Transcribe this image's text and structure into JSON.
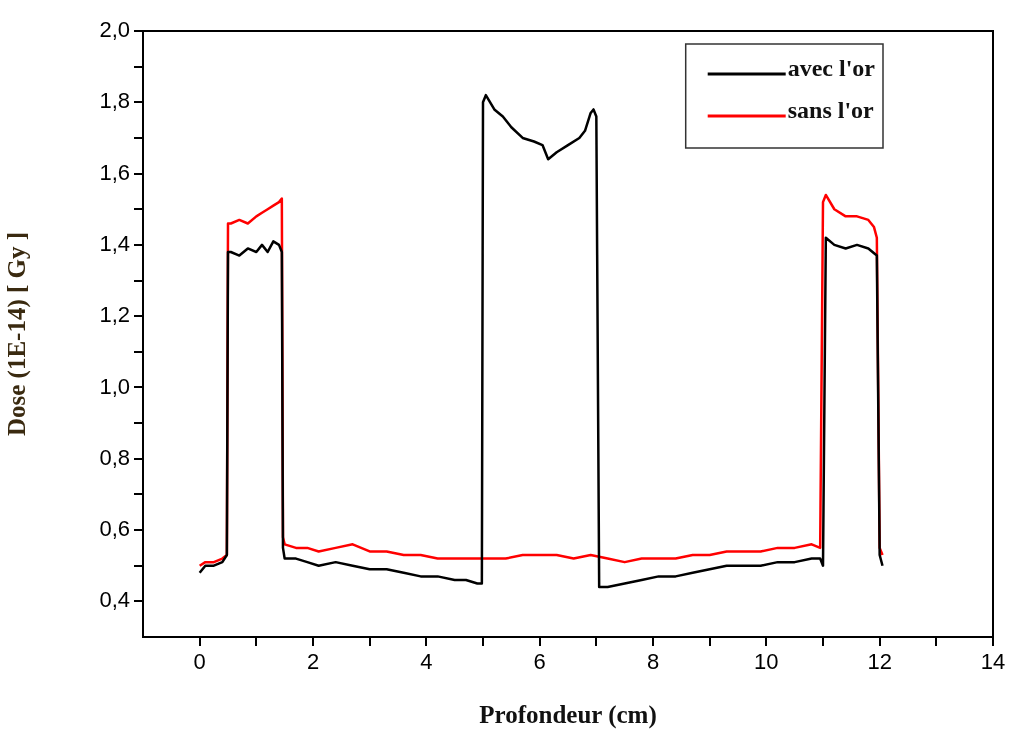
{
  "chart_data": {
    "type": "line",
    "xlabel": "Profondeur (cm)",
    "ylabel": "Dose (1E-14) [ Gy ]",
    "xlim": [
      -1,
      14
    ],
    "ylim": [
      0.3,
      2.0
    ],
    "xticks": [
      0,
      {
        "value": 1,
        "label": null
      },
      2,
      {
        "value": 3,
        "label": null
      },
      4,
      {
        "value": 5,
        "label": null
      },
      6,
      {
        "value": 7,
        "label": null
      },
      8,
      {
        "value": 9,
        "label": null
      },
      10,
      {
        "value": 11,
        "label": null
      },
      12,
      {
        "value": 13,
        "label": null
      },
      14
    ],
    "yticks": [
      {
        "value": 0.4,
        "label": "0,4"
      },
      {
        "value": 0.5,
        "label": null
      },
      {
        "value": 0.6,
        "label": "0,6"
      },
      {
        "value": 0.7,
        "label": null
      },
      {
        "value": 0.8,
        "label": "0,8"
      },
      {
        "value": 0.9,
        "label": null
      },
      {
        "value": 1.0,
        "label": "1,0"
      },
      {
        "value": 1.1,
        "label": null
      },
      {
        "value": 1.2,
        "label": "1,2"
      },
      {
        "value": 1.3,
        "label": null
      },
      {
        "value": 1.4,
        "label": "1,4"
      },
      {
        "value": 1.5,
        "label": null
      },
      {
        "value": 1.6,
        "label": "1,6"
      },
      {
        "value": 1.7,
        "label": null
      },
      {
        "value": 1.8,
        "label": "1,8"
      },
      {
        "value": 1.9,
        "label": null
      },
      {
        "value": 2.0,
        "label": "2,0"
      }
    ],
    "legend": "top right",
    "grid": false,
    "marker": "none",
    "line_style": "solid",
    "series": [
      {
        "name": "avec l'or",
        "color": "#000000",
        "x": [
          0,
          0.1,
          0.25,
          0.4,
          0.48,
          0.5,
          0.55,
          0.7,
          0.85,
          1.0,
          1.1,
          1.2,
          1.3,
          1.4,
          1.45,
          1.47,
          1.5,
          1.7,
          1.9,
          2.1,
          2.4,
          2.7,
          3.0,
          3.3,
          3.6,
          3.9,
          4.2,
          4.5,
          4.7,
          4.9,
          4.98,
          5.0,
          5.05,
          5.2,
          5.35,
          5.5,
          5.7,
          5.9,
          6.05,
          6.15,
          6.3,
          6.5,
          6.7,
          6.8,
          6.9,
          6.95,
          7.0,
          7.05,
          7.2,
          7.5,
          7.8,
          8.1,
          8.4,
          8.7,
          9.0,
          9.3,
          9.6,
          9.9,
          10.2,
          10.5,
          10.8,
          10.95,
          11.0,
          11.05,
          11.2,
          11.4,
          11.6,
          11.8,
          11.95,
          12.0,
          12.05
        ],
        "values": [
          0.48,
          0.5,
          0.5,
          0.51,
          0.53,
          1.38,
          1.38,
          1.37,
          1.39,
          1.38,
          1.4,
          1.38,
          1.41,
          1.4,
          1.38,
          0.55,
          0.52,
          0.52,
          0.51,
          0.5,
          0.51,
          0.5,
          0.49,
          0.49,
          0.48,
          0.47,
          0.47,
          0.46,
          0.46,
          0.45,
          0.45,
          1.8,
          1.82,
          1.78,
          1.76,
          1.73,
          1.7,
          1.69,
          1.68,
          1.64,
          1.66,
          1.68,
          1.7,
          1.72,
          1.77,
          1.78,
          1.76,
          0.44,
          0.44,
          0.45,
          0.46,
          0.47,
          0.47,
          0.48,
          0.49,
          0.5,
          0.5,
          0.5,
          0.51,
          0.51,
          0.52,
          0.52,
          0.5,
          1.42,
          1.4,
          1.39,
          1.4,
          1.39,
          1.37,
          0.53,
          0.5
        ]
      },
      {
        "name": "sans l'or",
        "color": "#ff0000",
        "x": [
          0,
          0.1,
          0.25,
          0.4,
          0.48,
          0.5,
          0.55,
          0.7,
          0.85,
          1.0,
          1.1,
          1.2,
          1.3,
          1.4,
          1.45,
          1.47,
          1.5,
          1.7,
          1.9,
          2.1,
          2.4,
          2.7,
          3.0,
          3.3,
          3.6,
          3.9,
          4.2,
          4.5,
          4.8,
          5.1,
          5.4,
          5.7,
          6.0,
          6.3,
          6.6,
          6.9,
          7.2,
          7.5,
          7.8,
          8.1,
          8.4,
          8.7,
          9.0,
          9.3,
          9.6,
          9.9,
          10.2,
          10.5,
          10.8,
          10.95,
          11.0,
          11.05,
          11.2,
          11.4,
          11.6,
          11.8,
          11.9,
          11.95,
          12.0,
          12.05
        ],
        "values": [
          0.5,
          0.51,
          0.51,
          0.52,
          0.53,
          1.46,
          1.46,
          1.47,
          1.46,
          1.48,
          1.49,
          1.5,
          1.51,
          1.52,
          1.53,
          0.58,
          0.56,
          0.55,
          0.55,
          0.54,
          0.55,
          0.56,
          0.54,
          0.54,
          0.53,
          0.53,
          0.52,
          0.52,
          0.52,
          0.52,
          0.52,
          0.53,
          0.53,
          0.53,
          0.52,
          0.53,
          0.52,
          0.51,
          0.52,
          0.52,
          0.52,
          0.53,
          0.53,
          0.54,
          0.54,
          0.54,
          0.55,
          0.55,
          0.56,
          0.55,
          1.52,
          1.54,
          1.5,
          1.48,
          1.48,
          1.47,
          1.45,
          1.42,
          0.55,
          0.53
        ]
      }
    ]
  }
}
